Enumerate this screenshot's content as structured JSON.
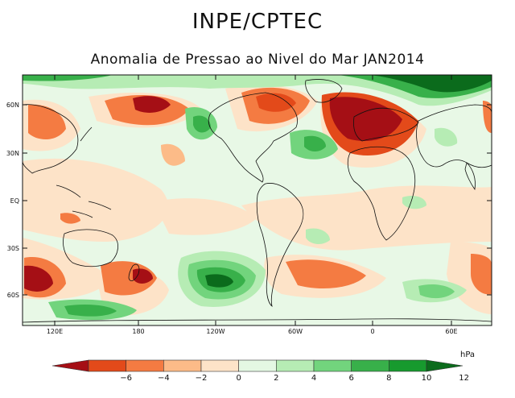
{
  "header": {
    "title": "INPE/CPTEC",
    "subtitle": "Anomalia de Pressao ao Nivel do Mar JAN2014"
  },
  "map": {
    "lat_labels": [
      "60N",
      "30N",
      "EQ",
      "30S",
      "60S"
    ],
    "lon_labels": [
      "120E",
      "180",
      "120W",
      "60W",
      "0",
      "60E"
    ],
    "anomaly_field": [
      {
        "region": "Greenland/Arctic Atlantic",
        "value": 12,
        "sign": "positive"
      },
      {
        "region": "North Atlantic (Iceland low)",
        "value": -8,
        "sign": "negative"
      },
      {
        "region": "North Pacific",
        "value": -6,
        "sign": "negative"
      },
      {
        "region": "Eastern North America",
        "value": -6,
        "sign": "negative"
      },
      {
        "region": "South Pacific (near 120W, 55S)",
        "value": 10,
        "sign": "positive"
      }
    ]
  },
  "colorbar": {
    "unit": "hPa",
    "ticks": [
      "−6",
      "−4",
      "−2",
      "0",
      "2",
      "4",
      "6",
      "8",
      "10",
      "12"
    ],
    "colors": [
      "#a50f15",
      "#e34a1a",
      "#f47b42",
      "#fcbb88",
      "#fde3c8",
      "#e4f8e3",
      "#b6ecb4",
      "#72d47d",
      "#38b04a",
      "#179a2e",
      "#0b6b1c"
    ]
  }
}
